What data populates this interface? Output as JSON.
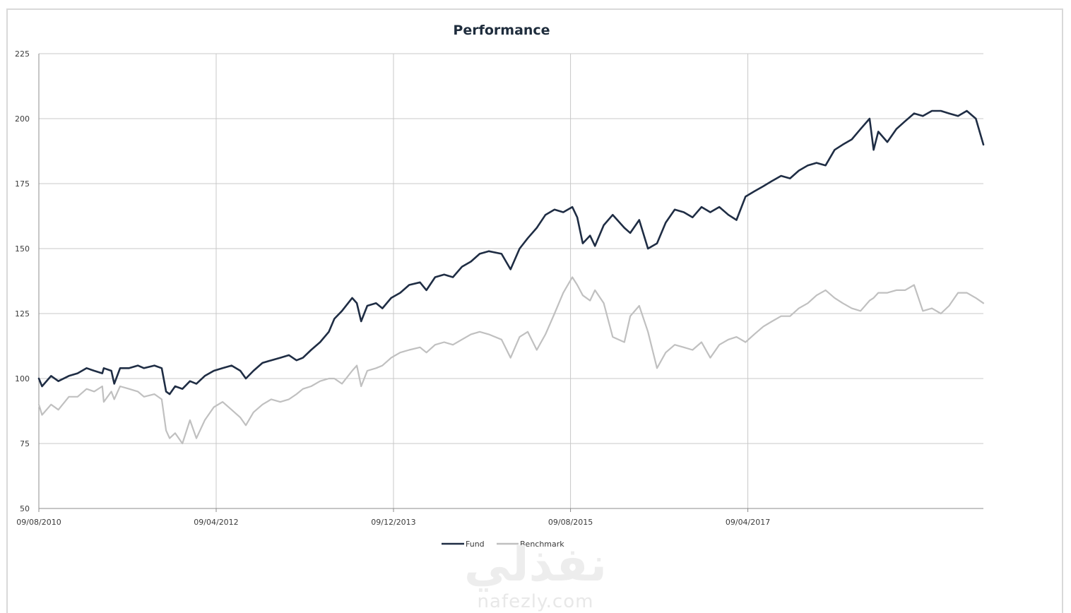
{
  "chart_data": {
    "type": "line",
    "title": "Performance",
    "xlabel": "",
    "ylabel": "",
    "ylim": [
      50,
      225
    ],
    "yticks": [
      50,
      75,
      100,
      125,
      150,
      175,
      200,
      225
    ],
    "xlim": [
      "2010-08-09",
      "2019-06-27"
    ],
    "xticks": [
      {
        "date": "2010-08-09",
        "label": "09/08/2010"
      },
      {
        "date": "2012-04-09",
        "label": "09/04/2012"
      },
      {
        "date": "2013-12-09",
        "label": "09/12/2013"
      },
      {
        "date": "2015-08-09",
        "label": "09/08/2015"
      },
      {
        "date": "2017-04-09",
        "label": "09/04/2017"
      }
    ],
    "grid": true,
    "legend_position": "bottom",
    "series": [
      {
        "name": "Fund",
        "color": "#1f2d44",
        "points": [
          [
            "2010-08-09",
            100
          ],
          [
            "2010-08-20",
            97
          ],
          [
            "2010-09-20",
            101
          ],
          [
            "2010-10-15",
            99
          ],
          [
            "2010-11-20",
            101
          ],
          [
            "2010-12-20",
            102
          ],
          [
            "2011-01-20",
            104
          ],
          [
            "2011-02-15",
            103
          ],
          [
            "2011-03-15",
            102
          ],
          [
            "2011-03-20",
            104
          ],
          [
            "2011-04-15",
            103
          ],
          [
            "2011-04-25",
            98
          ],
          [
            "2011-05-15",
            104
          ],
          [
            "2011-06-15",
            104
          ],
          [
            "2011-07-15",
            105
          ],
          [
            "2011-08-05",
            104
          ],
          [
            "2011-09-10",
            105
          ],
          [
            "2011-10-05",
            104
          ],
          [
            "2011-10-20",
            95
          ],
          [
            "2011-11-01",
            94
          ],
          [
            "2011-11-20",
            97
          ],
          [
            "2011-12-15",
            96
          ],
          [
            "2012-01-10",
            99
          ],
          [
            "2012-02-01",
            98
          ],
          [
            "2012-03-01",
            101
          ],
          [
            "2012-04-01",
            103
          ],
          [
            "2012-05-01",
            104
          ],
          [
            "2012-06-01",
            105
          ],
          [
            "2012-07-01",
            103
          ],
          [
            "2012-07-20",
            100
          ],
          [
            "2012-08-15",
            103
          ],
          [
            "2012-09-15",
            106
          ],
          [
            "2012-10-15",
            107
          ],
          [
            "2012-11-15",
            108
          ],
          [
            "2012-12-15",
            109
          ],
          [
            "2013-01-10",
            107
          ],
          [
            "2013-02-01",
            108
          ],
          [
            "2013-03-01",
            111
          ],
          [
            "2013-04-01",
            114
          ],
          [
            "2013-05-01",
            118
          ],
          [
            "2013-05-20",
            123
          ],
          [
            "2013-06-15",
            126
          ],
          [
            "2013-07-20",
            131
          ],
          [
            "2013-08-05",
            129
          ],
          [
            "2013-08-20",
            122
          ],
          [
            "2013-09-10",
            128
          ],
          [
            "2013-10-10",
            129
          ],
          [
            "2013-11-01",
            127
          ],
          [
            "2013-12-01",
            131
          ],
          [
            "2014-01-01",
            133
          ],
          [
            "2014-02-01",
            136
          ],
          [
            "2014-03-10",
            137
          ],
          [
            "2014-04-01",
            134
          ],
          [
            "2014-05-01",
            139
          ],
          [
            "2014-06-01",
            140
          ],
          [
            "2014-07-01",
            139
          ],
          [
            "2014-08-01",
            143
          ],
          [
            "2014-09-01",
            145
          ],
          [
            "2014-10-01",
            148
          ],
          [
            "2014-11-01",
            149
          ],
          [
            "2014-12-15",
            148
          ],
          [
            "2015-01-15",
            142
          ],
          [
            "2015-02-15",
            150
          ],
          [
            "2015-03-15",
            154
          ],
          [
            "2015-04-15",
            158
          ],
          [
            "2015-05-15",
            163
          ],
          [
            "2015-06-15",
            165
          ],
          [
            "2015-07-15",
            164
          ],
          [
            "2015-08-15",
            166
          ],
          [
            "2015-09-01",
            162
          ],
          [
            "2015-09-20",
            152
          ],
          [
            "2015-10-15",
            155
          ],
          [
            "2015-11-01",
            151
          ],
          [
            "2015-12-01",
            159
          ],
          [
            "2016-01-01",
            163
          ],
          [
            "2016-02-10",
            158
          ],
          [
            "2016-03-01",
            156
          ],
          [
            "2016-04-01",
            161
          ],
          [
            "2016-05-01",
            150
          ],
          [
            "2016-06-01",
            152
          ],
          [
            "2016-07-01",
            160
          ],
          [
            "2016-08-01",
            165
          ],
          [
            "2016-09-01",
            164
          ],
          [
            "2016-10-01",
            162
          ],
          [
            "2016-11-01",
            166
          ],
          [
            "2016-12-01",
            164
          ],
          [
            "2017-01-01",
            166
          ],
          [
            "2017-02-01",
            163
          ],
          [
            "2017-03-01",
            161
          ],
          [
            "2017-04-01",
            170
          ],
          [
            "2017-05-01",
            172
          ],
          [
            "2017-06-01",
            174
          ],
          [
            "2017-07-01",
            176
          ],
          [
            "2017-08-01",
            178
          ],
          [
            "2017-09-01",
            177
          ],
          [
            "2017-10-01",
            180
          ],
          [
            "2017-11-01",
            182
          ],
          [
            "2017-12-01",
            183
          ],
          [
            "2018-01-01",
            182
          ],
          [
            "2018-02-01",
            188
          ],
          [
            "2018-03-01",
            190
          ],
          [
            "2018-04-01",
            192
          ],
          [
            "2018-05-01",
            196
          ],
          [
            "2018-06-01",
            200
          ],
          [
            "2018-06-15",
            188
          ],
          [
            "2018-07-01",
            195
          ],
          [
            "2018-08-01",
            191
          ],
          [
            "2018-09-01",
            196
          ],
          [
            "2018-10-01",
            199
          ],
          [
            "2018-11-01",
            202
          ],
          [
            "2018-12-01",
            201
          ],
          [
            "2019-01-01",
            203
          ],
          [
            "2019-02-01",
            203
          ],
          [
            "2019-03-01",
            202
          ],
          [
            "2019-04-01",
            201
          ],
          [
            "2019-05-01",
            203
          ],
          [
            "2019-06-01",
            200
          ],
          [
            "2019-06-27",
            190
          ]
        ]
      },
      {
        "name": "Benchmark",
        "color": "#c0c0c0",
        "points": [
          [
            "2010-08-09",
            90
          ],
          [
            "2010-08-20",
            86
          ],
          [
            "2010-09-20",
            90
          ],
          [
            "2010-10-15",
            88
          ],
          [
            "2010-11-20",
            93
          ],
          [
            "2010-12-20",
            93
          ],
          [
            "2011-01-20",
            96
          ],
          [
            "2011-02-15",
            95
          ],
          [
            "2011-03-15",
            97
          ],
          [
            "2011-03-20",
            91
          ],
          [
            "2011-04-15",
            95
          ],
          [
            "2011-04-25",
            92
          ],
          [
            "2011-05-15",
            97
          ],
          [
            "2011-06-15",
            96
          ],
          [
            "2011-07-15",
            95
          ],
          [
            "2011-08-05",
            93
          ],
          [
            "2011-09-10",
            94
          ],
          [
            "2011-10-05",
            92
          ],
          [
            "2011-10-20",
            80
          ],
          [
            "2011-11-01",
            77
          ],
          [
            "2011-11-20",
            79
          ],
          [
            "2011-12-15",
            75
          ],
          [
            "2012-01-10",
            84
          ],
          [
            "2012-02-01",
            77
          ],
          [
            "2012-03-01",
            84
          ],
          [
            "2012-04-01",
            89
          ],
          [
            "2012-05-01",
            91
          ],
          [
            "2012-06-01",
            88
          ],
          [
            "2012-07-01",
            85
          ],
          [
            "2012-07-20",
            82
          ],
          [
            "2012-08-15",
            87
          ],
          [
            "2012-09-15",
            90
          ],
          [
            "2012-10-15",
            92
          ],
          [
            "2012-11-15",
            91
          ],
          [
            "2012-12-15",
            92
          ],
          [
            "2013-01-10",
            94
          ],
          [
            "2013-02-01",
            96
          ],
          [
            "2013-03-01",
            97
          ],
          [
            "2013-04-01",
            99
          ],
          [
            "2013-05-01",
            100
          ],
          [
            "2013-05-20",
            100
          ],
          [
            "2013-06-15",
            98
          ],
          [
            "2013-07-20",
            103
          ],
          [
            "2013-08-05",
            105
          ],
          [
            "2013-08-20",
            97
          ],
          [
            "2013-09-10",
            103
          ],
          [
            "2013-10-10",
            104
          ],
          [
            "2013-11-01",
            105
          ],
          [
            "2013-12-01",
            108
          ],
          [
            "2014-01-01",
            110
          ],
          [
            "2014-02-01",
            111
          ],
          [
            "2014-03-10",
            112
          ],
          [
            "2014-04-01",
            110
          ],
          [
            "2014-05-01",
            113
          ],
          [
            "2014-06-01",
            114
          ],
          [
            "2014-07-01",
            113
          ],
          [
            "2014-08-01",
            115
          ],
          [
            "2014-09-01",
            117
          ],
          [
            "2014-10-01",
            118
          ],
          [
            "2014-11-01",
            117
          ],
          [
            "2014-12-15",
            115
          ],
          [
            "2015-01-15",
            108
          ],
          [
            "2015-02-15",
            116
          ],
          [
            "2015-03-15",
            118
          ],
          [
            "2015-04-15",
            111
          ],
          [
            "2015-05-15",
            117
          ],
          [
            "2015-06-15",
            125
          ],
          [
            "2015-07-15",
            133
          ],
          [
            "2015-08-15",
            139
          ],
          [
            "2015-09-01",
            136
          ],
          [
            "2015-09-20",
            132
          ],
          [
            "2015-10-15",
            130
          ],
          [
            "2015-11-01",
            134
          ],
          [
            "2015-12-01",
            129
          ],
          [
            "2016-01-01",
            116
          ],
          [
            "2016-02-10",
            114
          ],
          [
            "2016-03-01",
            124
          ],
          [
            "2016-04-01",
            128
          ],
          [
            "2016-05-01",
            118
          ],
          [
            "2016-06-01",
            104
          ],
          [
            "2016-07-01",
            110
          ],
          [
            "2016-08-01",
            113
          ],
          [
            "2016-09-01",
            112
          ],
          [
            "2016-10-01",
            111
          ],
          [
            "2016-11-01",
            114
          ],
          [
            "2016-12-01",
            108
          ],
          [
            "2017-01-01",
            113
          ],
          [
            "2017-02-01",
            115
          ],
          [
            "2017-03-01",
            116
          ],
          [
            "2017-04-01",
            114
          ],
          [
            "2017-05-01",
            117
          ],
          [
            "2017-06-01",
            120
          ],
          [
            "2017-07-01",
            122
          ],
          [
            "2017-08-01",
            124
          ],
          [
            "2017-09-01",
            124
          ],
          [
            "2017-10-01",
            127
          ],
          [
            "2017-11-01",
            129
          ],
          [
            "2017-12-01",
            132
          ],
          [
            "2018-01-01",
            134
          ],
          [
            "2018-02-01",
            131
          ],
          [
            "2018-03-01",
            129
          ],
          [
            "2018-04-01",
            127
          ],
          [
            "2018-05-01",
            126
          ],
          [
            "2018-06-01",
            130
          ],
          [
            "2018-06-15",
            131
          ],
          [
            "2018-07-01",
            133
          ],
          [
            "2018-08-01",
            133
          ],
          [
            "2018-09-01",
            134
          ],
          [
            "2018-10-01",
            134
          ],
          [
            "2018-11-01",
            136
          ],
          [
            "2018-12-01",
            126
          ],
          [
            "2019-01-01",
            127
          ],
          [
            "2019-02-01",
            125
          ],
          [
            "2019-03-01",
            128
          ],
          [
            "2019-04-01",
            133
          ],
          [
            "2019-05-01",
            133
          ],
          [
            "2019-06-01",
            131
          ],
          [
            "2019-06-27",
            129
          ]
        ]
      }
    ]
  },
  "watermark": {
    "arabic": "نفذلي",
    "latin": "nafezly.com"
  }
}
